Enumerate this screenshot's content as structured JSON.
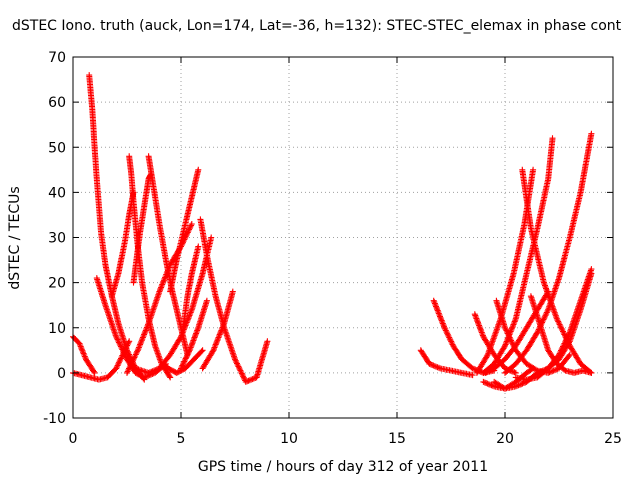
{
  "chart_data": {
    "type": "scatter",
    "title": "dSTEC Iono. truth (auck, Lon=174, Lat=-36, h=132): STEC-STEC_elemax in phase cont",
    "xlabel": "GPS time / hours of day 312 of year 2011",
    "ylabel": "dSTEC  / TECUs",
    "xlim": [
      0,
      25
    ],
    "ylim": [
      -10,
      70
    ],
    "xticks": [
      "0",
      "5",
      "10",
      "15",
      "20",
      "25"
    ],
    "yticks": [
      "-10",
      "0",
      "10",
      "20",
      "30",
      "40",
      "50",
      "60",
      "70"
    ],
    "grid": true,
    "marker": "+",
    "color": "#ff0000",
    "tracks": [
      {
        "x": [
          0.0,
          0.3,
          0.6,
          1.0
        ],
        "y": [
          8.0,
          6.5,
          3.0,
          0.0
        ]
      },
      {
        "x": [
          0.0,
          0.4,
          0.8,
          1.2,
          1.6,
          2.0,
          2.6
        ],
        "y": [
          0.0,
          -0.5,
          -1.0,
          -1.5,
          -1.0,
          1.0,
          7.0
        ]
      },
      {
        "x": [
          0.75,
          0.9,
          1.0,
          1.1,
          1.2,
          1.3,
          1.5,
          1.8,
          2.1,
          2.5,
          2.9,
          3.3
        ],
        "y": [
          66.0,
          58.0,
          50.0,
          43.0,
          37.0,
          31.0,
          24.0,
          17.0,
          11.0,
          5.0,
          1.0,
          -1.5
        ]
      },
      {
        "x": [
          1.1,
          1.5,
          2.0,
          2.5,
          2.9,
          3.3,
          3.8,
          4.3
        ],
        "y": [
          21.0,
          15.0,
          8.0,
          3.0,
          0.0,
          -1.0,
          0.0,
          2.0
        ]
      },
      {
        "x": [
          1.8,
          2.1,
          2.4,
          2.6,
          2.8
        ],
        "y": [
          17.0,
          22.0,
          29.0,
          35.0,
          40.0
        ]
      },
      {
        "x": [
          2.6,
          2.7,
          2.8,
          3.0,
          3.2,
          3.5,
          3.8,
          4.1,
          4.5
        ],
        "y": [
          48.0,
          44.0,
          38.0,
          28.0,
          20.0,
          12.0,
          6.0,
          2.0,
          -1.0
        ]
      },
      {
        "x": [
          2.5,
          3.0,
          3.5,
          4.0,
          4.5,
          5.0,
          5.5
        ],
        "y": [
          0.0,
          5.0,
          11.0,
          18.0,
          24.0,
          28.0,
          33.0
        ]
      },
      {
        "x": [
          2.8,
          3.1,
          3.4,
          3.5,
          3.6
        ],
        "y": [
          20.0,
          31.0,
          40.0,
          43.0,
          44.0
        ]
      },
      {
        "x": [
          3.5,
          3.7,
          4.0,
          4.3,
          4.6,
          5.0,
          5.3
        ],
        "y": [
          48.0,
          42.0,
          33.0,
          25.0,
          18.0,
          10.0,
          4.0
        ]
      },
      {
        "x": [
          2.9,
          3.5,
          4.0,
          4.5,
          5.0,
          5.5,
          6.0,
          6.4
        ],
        "y": [
          1.0,
          0.0,
          1.0,
          4.0,
          8.0,
          14.0,
          22.0,
          30.0
        ]
      },
      {
        "x": [
          4.5,
          4.8,
          5.2,
          5.5,
          5.8
        ],
        "y": [
          18.0,
          25.0,
          33.0,
          39.0,
          45.0
        ]
      },
      {
        "x": [
          4.2,
          4.4,
          4.8,
          5.2,
          5.6,
          6.0
        ],
        "y": [
          2.0,
          1.0,
          0.0,
          1.0,
          3.0,
          5.0
        ]
      },
      {
        "x": [
          5.0,
          5.4,
          5.8,
          6.2
        ],
        "y": [
          1.0,
          5.0,
          10.0,
          16.0
        ]
      },
      {
        "x": [
          5.1,
          5.3,
          5.5,
          5.8
        ],
        "y": [
          10.0,
          17.0,
          22.0,
          28.0
        ]
      },
      {
        "x": [
          5.9,
          6.2,
          6.6,
          7.0,
          7.5,
          8.0,
          8.5,
          9.0
        ],
        "y": [
          34.0,
          26.0,
          17.0,
          10.0,
          3.0,
          -2.0,
          -1.0,
          7.0
        ]
      },
      {
        "x": [
          6.0,
          6.5,
          7.0,
          7.4
        ],
        "y": [
          1.0,
          5.0,
          11.0,
          18.0
        ]
      },
      {
        "x": [
          16.1,
          16.5,
          17.0,
          17.5,
          18.0,
          18.5
        ],
        "y": [
          5.0,
          2.0,
          1.0,
          0.5,
          0.0,
          -0.5
        ]
      },
      {
        "x": [
          16.7,
          17.2,
          17.6,
          18.0,
          18.5,
          19.0,
          19.5
        ],
        "y": [
          16.0,
          10.0,
          6.0,
          3.0,
          1.0,
          0.0,
          0.5
        ]
      },
      {
        "x": [
          18.6,
          19.0,
          19.5,
          20.0,
          20.5
        ],
        "y": [
          13.0,
          8.0,
          4.0,
          1.0,
          0.0
        ]
      },
      {
        "x": [
          18.7,
          19.2,
          19.8,
          20.4,
          20.9,
          21.3
        ],
        "y": [
          0.0,
          4.0,
          12.0,
          22.0,
          33.0,
          45.0
        ]
      },
      {
        "x": [
          19.1,
          19.5,
          20.0,
          20.5,
          21.0,
          21.5,
          22.0
        ],
        "y": [
          0.0,
          1.0,
          3.0,
          6.0,
          10.0,
          14.0,
          18.0
        ]
      },
      {
        "x": [
          19.6,
          20.0,
          20.5,
          21.0,
          21.5,
          22.0,
          22.5,
          23.0
        ],
        "y": [
          16.0,
          10.0,
          5.0,
          2.0,
          0.5,
          0.0,
          1.0,
          4.0
        ]
      },
      {
        "x": [
          19.0,
          19.5,
          20.0,
          20.5,
          21.0,
          21.5,
          22.0,
          22.2
        ],
        "y": [
          0.0,
          2.0,
          6.0,
          12.0,
          22.0,
          32.0,
          43.0,
          52.0
        ]
      },
      {
        "x": [
          19.0,
          19.5,
          20.0,
          20.5,
          21.0,
          21.3
        ],
        "y": [
          -2.0,
          -3.0,
          -3.5,
          -2.0,
          0.0,
          1.0
        ]
      },
      {
        "x": [
          19.5,
          20.0,
          20.5,
          21.0,
          21.5,
          22.0,
          22.5,
          23.0,
          23.5,
          24.0
        ],
        "y": [
          -2.0,
          -3.5,
          -3.0,
          -2.0,
          0.0,
          1.0,
          3.0,
          7.0,
          14.0,
          22.0
        ]
      },
      {
        "x": [
          20.0,
          20.5,
          21.0,
          21.5,
          22.0,
          22.5,
          23.0,
          23.5,
          24.0
        ],
        "y": [
          0.0,
          2.0,
          5.0,
          9.0,
          14.0,
          21.0,
          30.0,
          40.0,
          53.0
        ]
      },
      {
        "x": [
          20.5,
          21.0,
          21.5,
          22.0,
          22.5,
          23.0,
          23.5,
          24.0
        ],
        "y": [
          -1.0,
          -1.5,
          -1.0,
          1.0,
          4.0,
          9.0,
          16.0,
          23.0
        ]
      },
      {
        "x": [
          21.2,
          21.6,
          22.0,
          22.4,
          22.8,
          23.2,
          23.6,
          24.0
        ],
        "y": [
          17.0,
          11.0,
          5.0,
          2.0,
          0.5,
          0.0,
          0.5,
          0.0
        ]
      },
      {
        "x": [
          20.8,
          21.2,
          21.8,
          22.4,
          23.0,
          23.5,
          24.0
        ],
        "y": [
          45.0,
          32.0,
          20.0,
          12.0,
          6.0,
          2.0,
          0.0
        ]
      }
    ]
  }
}
